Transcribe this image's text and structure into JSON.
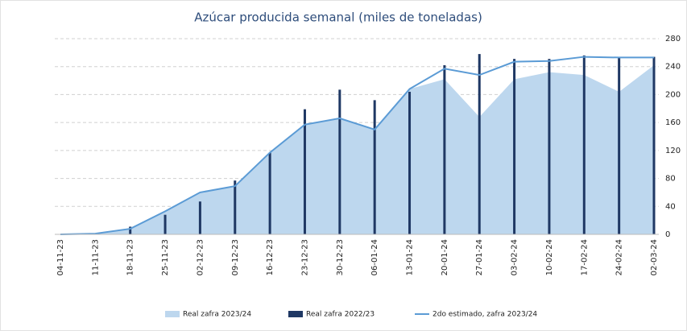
{
  "chart_data": {
    "type": "combo",
    "title": "Azúcar producida semanal (miles de toneladas)",
    "categories": [
      "04-11-23",
      "11-11-23",
      "18-11-23",
      "25-11-23",
      "02-12-23",
      "09-12-23",
      "16-12-23",
      "23-12-23",
      "30-12-23",
      "06-01-24",
      "13-01-24",
      "20-01-24",
      "27-01-24",
      "03-02-24",
      "10-02-24",
      "17-02-24",
      "24-02-24",
      "02-03-24"
    ],
    "series": [
      {
        "name": "Real zafra 2023/24",
        "type": "area",
        "color": "#bdd7ee",
        "values": [
          0,
          1,
          8,
          33,
          60,
          68,
          117,
          157,
          165,
          150,
          208,
          222,
          168,
          222,
          232,
          228,
          204,
          242
        ]
      },
      {
        "name": "Real zafra 2022/23",
        "type": "bar",
        "color": "#1f3864",
        "values": [
          null,
          null,
          11,
          28,
          47,
          77,
          117,
          179,
          207,
          192,
          204,
          242,
          258,
          251,
          251,
          256,
          254,
          254
        ]
      },
      {
        "name": "2do estimado, zafra 2023/24",
        "type": "line",
        "color": "#5b9bd5",
        "values": [
          0,
          1,
          8,
          33,
          60,
          69,
          117,
          157,
          166,
          150,
          208,
          237,
          228,
          247,
          248,
          254,
          253,
          253
        ]
      }
    ],
    "ylim": [
      0,
      280
    ],
    "yticks": [
      0,
      40,
      80,
      120,
      160,
      200,
      240,
      280
    ],
    "grid": true
  }
}
